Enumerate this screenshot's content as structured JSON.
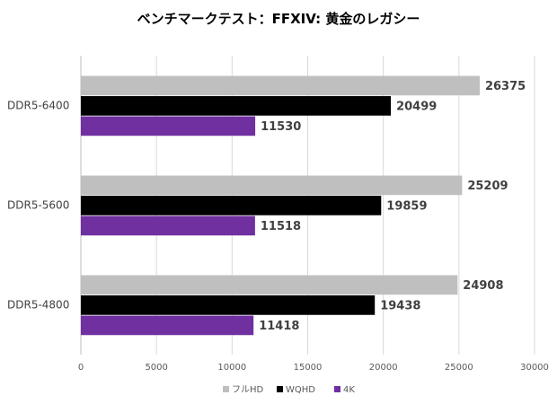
{
  "chart_data": {
    "type": "bar",
    "orientation": "horizontal",
    "title": "ベンチマークテスト：FFXIV: 黄金のレガシー",
    "categories": [
      "DDR5-6400",
      "DDR5-5600",
      "DDR5-4800"
    ],
    "series": [
      {
        "name": "フルHD",
        "color": "#bfbfbf",
        "values": [
          26375,
          25209,
          24908
        ]
      },
      {
        "name": "WQHD",
        "color": "#000000",
        "values": [
          20499,
          19859,
          19438
        ]
      },
      {
        "name": "4K",
        "color": "#7030a0",
        "values": [
          11530,
          11518,
          11418
        ]
      }
    ],
    "xlim": [
      0,
      30000
    ],
    "xticks": [
      "0",
      "5000",
      "10000",
      "15000",
      "20000",
      "25000",
      "30000"
    ],
    "grid": true,
    "legend": "bottom"
  }
}
